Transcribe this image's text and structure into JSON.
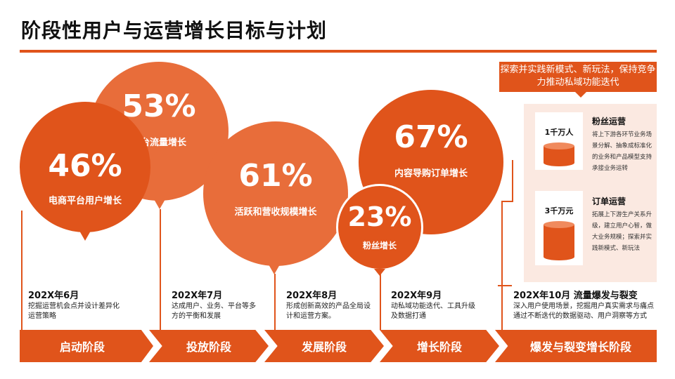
{
  "title": "阶段性用户与运营增长目标与计划",
  "bubbles": [
    {
      "pct": "46%",
      "label": "电商平台用户增长"
    },
    {
      "pct": "53%",
      "label": "平台流量增长"
    },
    {
      "pct": "61%",
      "label": "活跃和营收规模增长"
    },
    {
      "pct": "67%",
      "label": "内容导购订单增长"
    },
    {
      "pct": "23%",
      "label": "粉丝增长"
    }
  ],
  "stages": [
    {
      "date": "202X年6月",
      "desc": "挖掘运营机会点并设计差异化运营策略",
      "name": "启动阶段"
    },
    {
      "date": "202X年7月",
      "desc": "达成用户、业务、平台等多方的平衡和发展",
      "name": "投放阶段"
    },
    {
      "date": "202X年8月",
      "desc": "形成创新高效的产品全局设计和运营方案。",
      "name": "发展阶段"
    },
    {
      "date": "202X年9月",
      "desc": "动私域功能迭代、工具升级及数据打通",
      "name": "增长阶段"
    },
    {
      "date": "202X年10月  流量爆发与裂变",
      "desc": "深入用户使用场景，挖掘用户真实需求与痛点通过不断迭代的数据驱动、用户洞察等方式",
      "name": "爆发与裂变增长阶段"
    }
  ],
  "callout": "探索并实践新模式、新玩法，保持竞争力推动私域功能迭代",
  "panel": [
    {
      "amount": "1千万人",
      "title": "粉丝运营",
      "desc": "将上下游各环节业务场景分解、抽象成标准化的业务和产品模型支持承接业务运转"
    },
    {
      "amount": "3千万元",
      "title": "订单运营",
      "desc": "拓展上下游生产关系升级，建立用户心智，做大业务规模；探索并实践新模式、新玩法"
    }
  ],
  "colors": {
    "accent": "#E0541B",
    "bubble_dark": "#E0541B",
    "bubble_light": "#E86D3A",
    "panel_bg": "#FBE9E1"
  }
}
